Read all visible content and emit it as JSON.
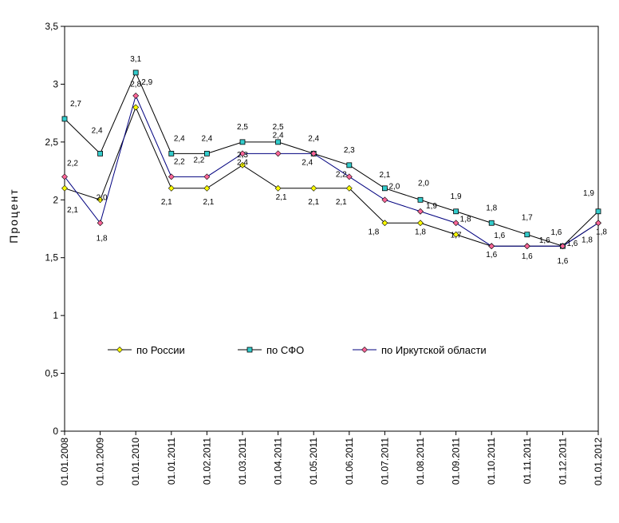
{
  "chart_data": {
    "type": "line",
    "title": "",
    "xlabel": "",
    "ylabel": "Процент",
    "ylim": [
      0,
      3.5
    ],
    "yticks": [
      "0",
      "0,5",
      "1",
      "1,5",
      "2",
      "2,5",
      "3",
      "3,5"
    ],
    "grid": false,
    "legend_position": "inside-bottom",
    "categories": [
      "01.01.2008",
      "01.01.2009",
      "01.01.2010",
      "01.01.2011",
      "01.02.2011",
      "01.03.2011",
      "01.04.2011",
      "01.05.2011",
      "01.06.2011",
      "01.07.2011",
      "01.08.2011",
      "01.09.2011",
      "01.10.2011",
      "01.11.2011",
      "01.12.2011",
      "01.01.2012"
    ],
    "series": [
      {
        "name": "по России",
        "color": "#ffff00",
        "marker": "diamond",
        "values": [
          2.1,
          2.0,
          2.8,
          2.1,
          2.1,
          2.3,
          2.1,
          2.1,
          2.1,
          1.8,
          1.8,
          1.7,
          1.6,
          1.6,
          1.6,
          1.8
        ],
        "labels": [
          "2,1",
          "2,0",
          "2,8",
          "2,1",
          "2,1",
          "2,3",
          "2,1",
          "2,1",
          "2,1",
          "1,8",
          "1,8",
          "1,7",
          "1,6",
          "1,6",
          "1,6",
          "1,8"
        ]
      },
      {
        "name": "по СФО",
        "color": "#33cccc",
        "marker": "square",
        "values": [
          2.7,
          2.4,
          3.1,
          2.4,
          2.4,
          2.5,
          2.5,
          2.4,
          2.3,
          2.1,
          2.0,
          1.9,
          1.8,
          1.7,
          1.6,
          1.9
        ],
        "labels": [
          "2,7",
          "2,4",
          "3,1",
          "2,4",
          "2,4",
          "2,5",
          "2,5",
          "2,4",
          "2,3",
          "2,1",
          "2,0",
          "1,9",
          "1,8",
          "1,7",
          "1,6",
          "1,9"
        ]
      },
      {
        "name": "по Иркутской области",
        "color": "#ff6699",
        "marker": "diamond",
        "values": [
          2.2,
          1.8,
          2.9,
          2.2,
          2.2,
          2.4,
          2.4,
          2.4,
          2.2,
          2.0,
          1.9,
          1.8,
          1.6,
          1.6,
          1.6,
          1.8
        ],
        "labels": [
          "2,2",
          "1,8",
          "2,9",
          "2,2",
          "2,2",
          "2,4",
          "2,4",
          "2,4",
          "2,2",
          "2,0",
          "1,9",
          "1,8",
          "1,6",
          "1,6",
          "1,6",
          "1,8"
        ]
      }
    ]
  }
}
